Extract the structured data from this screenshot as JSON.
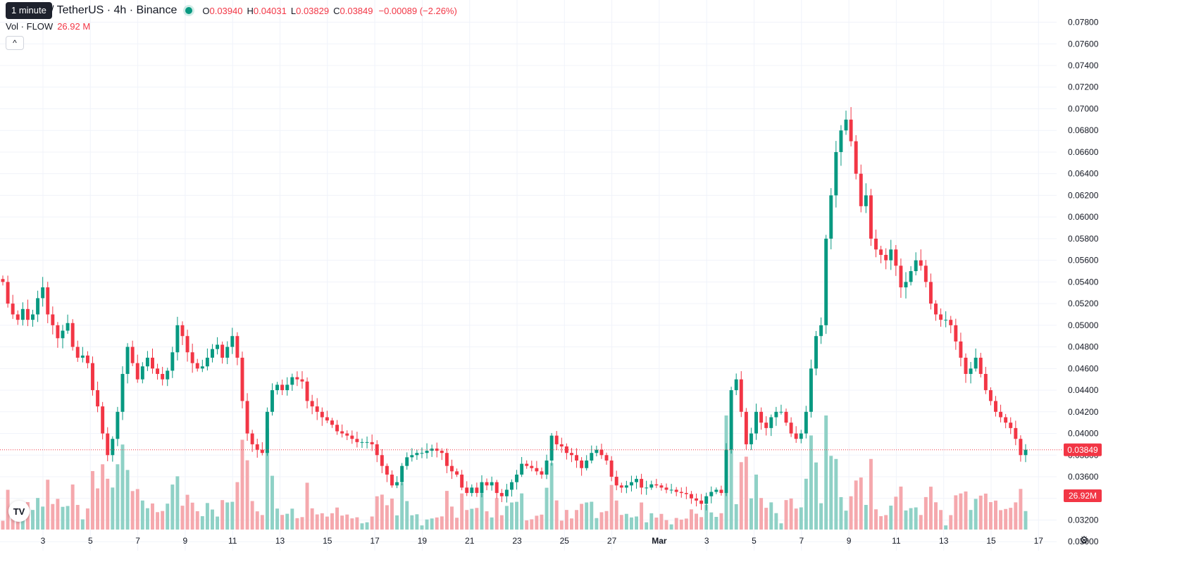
{
  "header": {
    "tooltip": "1 minute",
    "symbol_title": "/ TetherUS · 4h · Binance",
    "ohlc": {
      "o_label": "O",
      "o_value": "0.03940",
      "h_label": "H",
      "h_value": "0.04031",
      "l_label": "L",
      "l_value": "0.03829",
      "c_label": "C",
      "c_value": "0.03849",
      "change": "−0.00089 (−2.26%)"
    }
  },
  "volume_legend": {
    "label": "Vol · FLOW",
    "value": "26.92 M"
  },
  "icons": {
    "collapse": "chevron-up-icon",
    "logo": "tradingview-logo-icon",
    "settings": "gear-icon"
  },
  "colors": {
    "up": "#089981",
    "down": "#f23645",
    "up_volume": "#8fd1c6",
    "down_volume": "#f5a8ad",
    "grid": "#f0f3fa"
  },
  "chart_data": {
    "type": "candlestick",
    "symbol": "FLOW / TetherUS",
    "interval": "4h",
    "exchange": "Binance",
    "ylim": [
      0.0293,
      0.0794
    ],
    "y_ticks": [
      "0.03000",
      "0.03200",
      "0.03400",
      "0.03600",
      "0.03800",
      "0.04000",
      "0.04200",
      "0.04400",
      "0.04600",
      "0.04800",
      "0.05000",
      "0.05200",
      "0.05400",
      "0.05600",
      "0.05800",
      "0.06000",
      "0.06200",
      "0.06400",
      "0.06600",
      "0.06800",
      "0.07000",
      "0.07200",
      "0.07400",
      "0.07600",
      "0.07800"
    ],
    "x_ticks": [
      "3",
      "5",
      "7",
      "9",
      "11",
      "13",
      "15",
      "17",
      "19",
      "21",
      "23",
      "25",
      "27",
      "Mar",
      "3",
      "5",
      "7",
      "9",
      "11",
      "13",
      "15",
      "17"
    ],
    "last_price": "0.03849",
    "last_volume": "26.92M",
    "volume_max_millions": 110,
    "close_series": [
      0.054,
      0.052,
      0.051,
      0.0505,
      0.0515,
      0.0505,
      0.051,
      0.0525,
      0.0535,
      0.051,
      0.05,
      0.0488,
      0.0495,
      0.0502,
      0.048,
      0.047,
      0.0472,
      0.0465,
      0.044,
      0.0425,
      0.04,
      0.038,
      0.0395,
      0.042,
      0.0455,
      0.048,
      0.0465,
      0.045,
      0.0462,
      0.047,
      0.046,
      0.0455,
      0.045,
      0.0458,
      0.0475,
      0.05,
      0.049,
      0.0475,
      0.0465,
      0.046,
      0.0462,
      0.047,
      0.0478,
      0.0482,
      0.047,
      0.048,
      0.049,
      0.047,
      0.043,
      0.04,
      0.039,
      0.0385,
      0.0382,
      0.042,
      0.044,
      0.0445,
      0.044,
      0.0445,
      0.0452,
      0.045,
      0.0448,
      0.043,
      0.0425,
      0.042,
      0.0415,
      0.0412,
      0.0408,
      0.0402,
      0.04,
      0.0398,
      0.0395,
      0.0392,
      0.0392,
      0.0392,
      0.039,
      0.038,
      0.037,
      0.0362,
      0.0352,
      0.0355,
      0.037,
      0.0378,
      0.038,
      0.0382,
      0.0382,
      0.0384,
      0.0386,
      0.0384,
      0.0382,
      0.037,
      0.0365,
      0.0362,
      0.035,
      0.0345,
      0.035,
      0.0345,
      0.0355,
      0.0352,
      0.0355,
      0.0345,
      0.0342,
      0.0348,
      0.0355,
      0.0362,
      0.0372,
      0.037,
      0.0368,
      0.0365,
      0.0362,
      0.0375,
      0.0398,
      0.039,
      0.0388,
      0.0382,
      0.038,
      0.0375,
      0.0368,
      0.0375,
      0.0382,
      0.0385,
      0.038,
      0.0375,
      0.036,
      0.0352,
      0.035,
      0.0352,
      0.0355,
      0.0358,
      0.035,
      0.035,
      0.0353,
      0.0352,
      0.035,
      0.0348,
      0.0348,
      0.0346,
      0.0345,
      0.0344,
      0.034,
      0.0338,
      0.0335,
      0.0342,
      0.0346,
      0.0348,
      0.0345,
      0.0385,
      0.044,
      0.045,
      0.042,
      0.039,
      0.04,
      0.042,
      0.041,
      0.0405,
      0.0415,
      0.042,
      0.042,
      0.041,
      0.04,
      0.0395,
      0.04,
      0.042,
      0.046,
      0.049,
      0.05,
      0.058,
      0.062,
      0.066,
      0.068,
      0.069,
      0.067,
      0.064,
      0.061,
      0.062,
      0.058,
      0.057,
      0.0565,
      0.056,
      0.057,
      0.0555,
      0.0535,
      0.054,
      0.055,
      0.056,
      0.0555,
      0.054,
      0.052,
      0.051,
      0.0505,
      0.0505,
      0.05,
      0.0485,
      0.047,
      0.0455,
      0.046,
      0.047,
      0.0455,
      0.044,
      0.043,
      0.042,
      0.0415,
      0.041,
      0.0405,
      0.0395,
      0.038,
      0.0385
    ]
  }
}
